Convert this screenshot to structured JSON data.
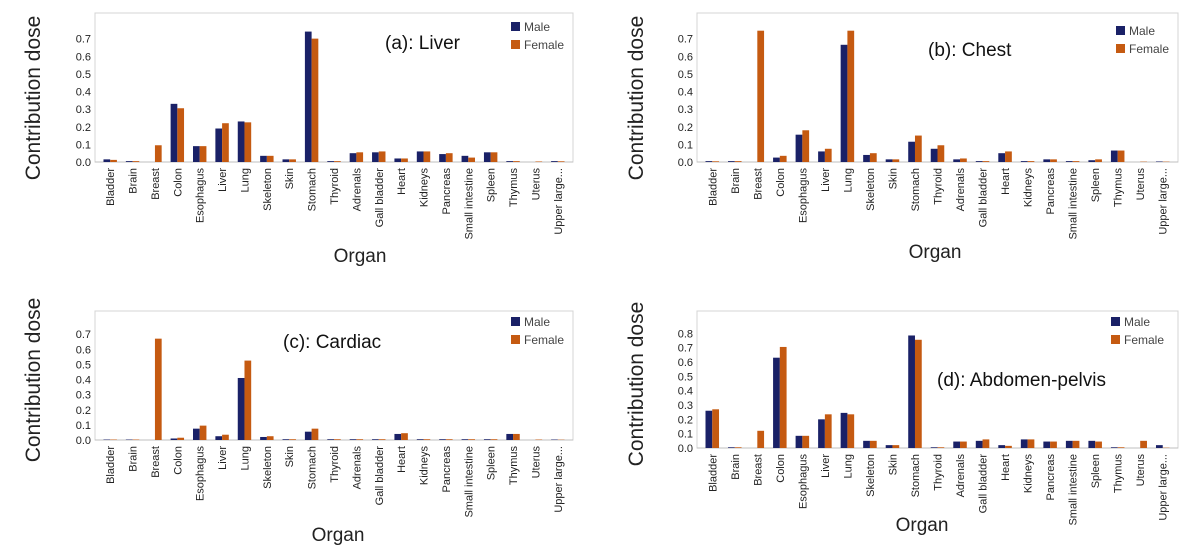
{
  "colors": {
    "male": "#1a2167",
    "female": "#c55a11",
    "frame": "#d4d4d4"
  },
  "chart_data": [
    {
      "type": "bar",
      "title": "(a): Liver",
      "xlabel": "Organ",
      "ylabel": "Contribution dose",
      "ylim": [
        0,
        0.8
      ],
      "yticks": [
        "0.0",
        "0.1",
        "0.2",
        "0.3",
        "0.4",
        "0.5",
        "0.6",
        "0.7"
      ],
      "legend_position": "top-right",
      "categories": [
        "Bladder",
        "Brain",
        "Breast",
        "Colon",
        "Esophagus",
        "Liver",
        "Lung",
        "Skeleton",
        "Skin",
        "Stomach",
        "Thyroid",
        "Adrenals",
        "Gall bladder",
        "Heart",
        "Kidneys",
        "Pancreas",
        "Small intestine",
        "Spleen",
        "Thymus",
        "Uterus",
        "Upper large..."
      ],
      "series": [
        {
          "name": "Male",
          "values": [
            0.015,
            0.005,
            0.0,
            0.33,
            0.09,
            0.19,
            0.23,
            0.035,
            0.015,
            0.74,
            0.005,
            0.05,
            0.055,
            0.02,
            0.06,
            0.045,
            0.035,
            0.055,
            0.005,
            0.0,
            0.005
          ]
        },
        {
          "name": "Female",
          "values": [
            0.012,
            0.005,
            0.095,
            0.305,
            0.09,
            0.22,
            0.225,
            0.035,
            0.015,
            0.7,
            0.005,
            0.055,
            0.06,
            0.02,
            0.06,
            0.05,
            0.025,
            0.055,
            0.005,
            0.003,
            0.004
          ]
        }
      ]
    },
    {
      "type": "bar",
      "title": "(b): Chest",
      "xlabel": "Organ",
      "ylabel": "Contribution dose",
      "ylim": [
        0,
        0.8
      ],
      "yticks": [
        "0.0",
        "0.1",
        "0.2",
        "0.3",
        "0.4",
        "0.5",
        "0.6",
        "0.7"
      ],
      "legend_position": "top-right",
      "categories": [
        "Bladder",
        "Brain",
        "Breast",
        "Colon",
        "Esophagus",
        "Liver",
        "Lung",
        "Skeleton",
        "Skin",
        "Stomach",
        "Thyroid",
        "Adrenals",
        "Gall bladder",
        "Heart",
        "Kidneys",
        "Pancreas",
        "Small intestine",
        "Spleen",
        "Thymus",
        "Uterus",
        "Upper large..."
      ],
      "series": [
        {
          "name": "Male",
          "values": [
            0.005,
            0.005,
            0.0,
            0.025,
            0.155,
            0.06,
            0.665,
            0.04,
            0.015,
            0.115,
            0.075,
            0.015,
            0.005,
            0.05,
            0.005,
            0.015,
            0.005,
            0.01,
            0.065,
            0.0,
            0.003
          ]
        },
        {
          "name": "Female",
          "values": [
            0.004,
            0.005,
            0.745,
            0.035,
            0.18,
            0.075,
            0.745,
            0.05,
            0.015,
            0.15,
            0.095,
            0.02,
            0.005,
            0.06,
            0.005,
            0.015,
            0.005,
            0.015,
            0.065,
            0.002,
            0.002
          ]
        }
      ]
    },
    {
      "type": "bar",
      "title": "(c):  Cardiac",
      "xlabel": "Organ",
      "ylabel": "Contribution dose",
      "ylim": [
        0,
        0.8
      ],
      "yticks": [
        "0.0",
        "0.1",
        "0.2",
        "0.3",
        "0.4",
        "0.5",
        "0.6",
        "0.7"
      ],
      "legend_position": "top-right",
      "categories": [
        "Bladder",
        "Brain",
        "Breast",
        "Colon",
        "Esophagus",
        "Liver",
        "Lung",
        "Skeleton",
        "Skin",
        "Stomach",
        "Thyroid",
        "Adrenals",
        "Gall bladder",
        "Heart",
        "Kidneys",
        "Pancreas",
        "Small intestine",
        "Spleen",
        "Thymus",
        "Uterus",
        "Upper large..."
      ],
      "series": [
        {
          "name": "Male",
          "values": [
            0.003,
            0.003,
            0.0,
            0.01,
            0.075,
            0.025,
            0.41,
            0.02,
            0.005,
            0.055,
            0.005,
            0.005,
            0.005,
            0.04,
            0.005,
            0.005,
            0.005,
            0.005,
            0.04,
            0.0,
            0.003
          ]
        },
        {
          "name": "Female",
          "values": [
            0.003,
            0.003,
            0.67,
            0.015,
            0.095,
            0.035,
            0.525,
            0.025,
            0.005,
            0.075,
            0.005,
            0.005,
            0.005,
            0.045,
            0.005,
            0.005,
            0.005,
            0.005,
            0.04,
            0.003,
            0.002
          ]
        }
      ]
    },
    {
      "type": "bar",
      "title": "(d): Abdomen-pelvis",
      "xlabel": "Organ",
      "ylabel": "Contribution dose",
      "ylim": [
        0,
        0.9
      ],
      "yticks": [
        "0.0",
        "0.1",
        "0.2",
        "0.3",
        "0.4",
        "0.5",
        "0.6",
        "0.7",
        "0.8"
      ],
      "legend_position": "top-right",
      "categories": [
        "Bladder",
        "Brain",
        "Breast",
        "Colon",
        "Esophagus",
        "Liver",
        "Lung",
        "Skeleton",
        "Skin",
        "Stomach",
        "Thyroid",
        "Adrenals",
        "Gall bladder",
        "Heart",
        "Kidneys",
        "Pancreas",
        "Small intestine",
        "Spleen",
        "Thymus",
        "Uterus",
        "Upper large..."
      ],
      "series": [
        {
          "name": "Male",
          "values": [
            0.26,
            0.005,
            0.0,
            0.63,
            0.085,
            0.2,
            0.245,
            0.05,
            0.02,
            0.785,
            0.005,
            0.045,
            0.05,
            0.02,
            0.06,
            0.045,
            0.05,
            0.05,
            0.005,
            0.0,
            0.02
          ]
        },
        {
          "name": "Female",
          "values": [
            0.27,
            0.005,
            0.12,
            0.705,
            0.085,
            0.235,
            0.235,
            0.05,
            0.02,
            0.755,
            0.005,
            0.045,
            0.06,
            0.015,
            0.06,
            0.045,
            0.05,
            0.045,
            0.005,
            0.05,
            0.002
          ]
        }
      ]
    }
  ]
}
